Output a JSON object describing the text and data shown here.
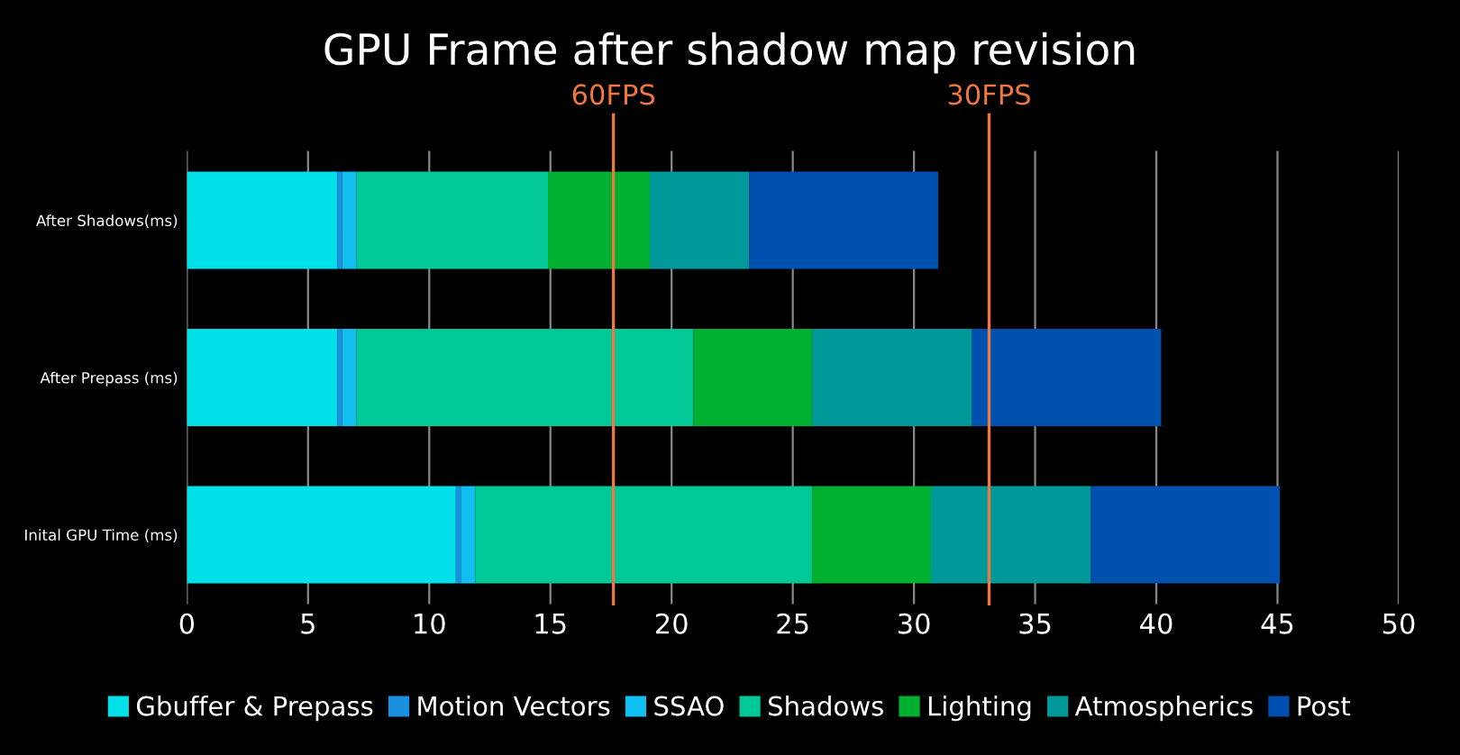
{
  "chart_data": {
    "type": "bar",
    "orientation": "horizontal",
    "stacked": true,
    "title": "GPU Frame after shadow map revision",
    "categories": [
      "After Shadows(ms)",
      "After Prepass (ms)",
      "Inital GPU Time (ms)"
    ],
    "series": [
      {
        "name": "Gbuffer & Prepass",
        "color": "#00e0e8",
        "values": [
          6.2,
          6.2,
          11.1
        ]
      },
      {
        "name": "Motion Vectors",
        "color": "#1a90e0",
        "values": [
          0.2,
          0.2,
          0.2
        ]
      },
      {
        "name": "SSAO",
        "color": "#10bff0",
        "values": [
          0.6,
          0.6,
          0.6
        ]
      },
      {
        "name": "Shadows",
        "color": "#00c896",
        "values": [
          7.9,
          13.9,
          13.9
        ]
      },
      {
        "name": "Lighting",
        "color": "#00b030",
        "values": [
          4.2,
          4.9,
          4.9
        ]
      },
      {
        "name": "Atmospherics",
        "color": "#00999a",
        "values": [
          4.1,
          6.6,
          6.6
        ]
      },
      {
        "name": "Post",
        "color": "#0050b0",
        "values": [
          7.8,
          7.8,
          7.8
        ]
      }
    ],
    "xlim": [
      0,
      50
    ],
    "xticks": [
      0,
      5,
      10,
      15,
      20,
      25,
      30,
      35,
      40,
      45,
      50
    ],
    "grid": "x",
    "legend": "bottom",
    "ref_lines": [
      {
        "axis": "x",
        "value": 17.6,
        "label": "60FPS",
        "color": "#f07840"
      },
      {
        "axis": "x",
        "value": 33.1,
        "label": "30FPS",
        "color": "#f07840"
      }
    ]
  }
}
